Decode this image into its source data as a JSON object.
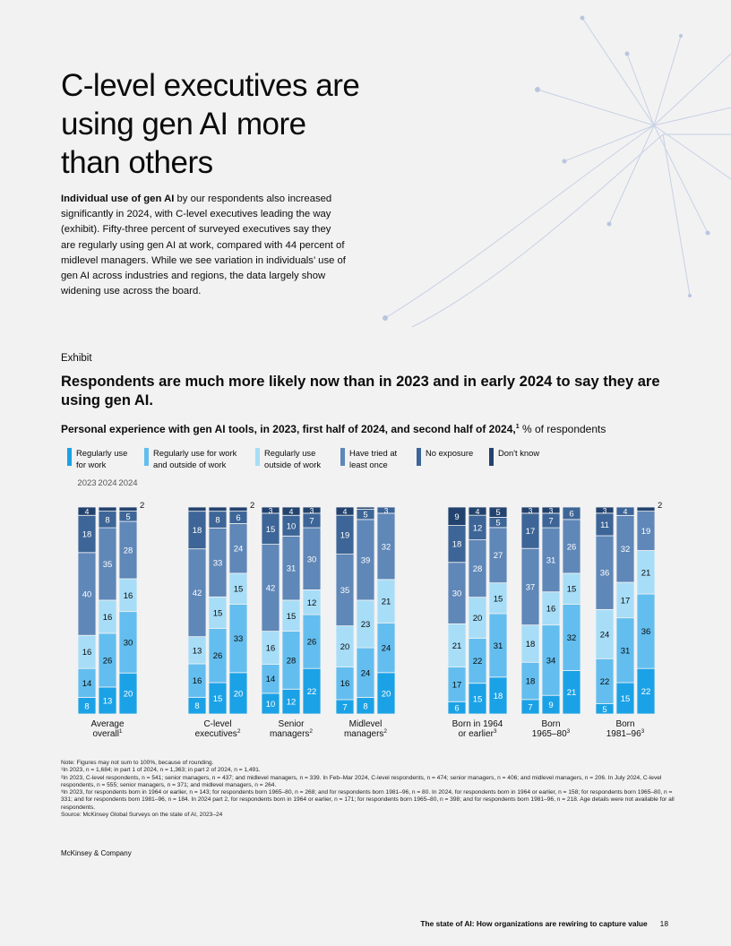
{
  "page": {
    "title": "C-level executives are using gen AI more than others",
    "intro_bold": "Individual use of gen AI",
    "intro_rest": " by our respondents also increased significantly in 2024, with C-level executives leading the way (exhibit). Fifty-three percent of surveyed executives say they are regularly using gen AI at work, compared with 44 percent of midlevel managers. While we see variation in individuals’ use of gen AI across industries and regions, the data largely show widening use across the board.",
    "exhibit_label": "Exhibit",
    "chart_title": "Respondents are much more likely now than in 2023 and in early 2024 to say they are using gen AI.",
    "chart_subtitle_bold": "Personal experience with gen AI tools, in 2023, first half of 2024, and second half of 2024,",
    "chart_subtitle_sup": "1",
    "chart_subtitle_rest": " % of respondents",
    "notes": [
      "Note: Figures may not sum to 100%, because of rounding.",
      "¹In 2023, n = 1,684; in part 1 of 2024, n = 1,363; in part 2 of 2024, n = 1,491.",
      "²In 2023, C-level respondents, n = 541; senior managers, n = 437; and midlevel managers, n = 339. In Feb–Mar 2024, C-level respondents, n = 474; senior managers, n = 406; and midlevel managers, n = 206. In July 2024, C-level respondents, n = 555; senior managers, n = 371; and midlevel managers, n = 264.",
      "³In 2023, for respondents born in 1964 or earlier, n = 143; for respondents born 1965–80, n = 268; and for respondents born 1981–96, n = 80. In 2024, for respondents born in 1964 or earlier, n = 158; for respondents born 1965–80, n = 331; and for respondents born 1981–96, n = 184. In 2024 part 2, for respondents born in 1964 or earlier, n = 171; for respondents born 1965–80, n = 398; and for respondents born 1981–96, n = 218. Age details were not available for all respondents.",
      "Source: McKinsey Global Surveys on the state of AI, 2023–24"
    ],
    "brand": "McKinsey & Company",
    "footer_text": "The state of AI: How organizations are rewiring to capture value",
    "page_number": "18"
  },
  "chart_data": {
    "type": "bar",
    "stacked": true,
    "years": [
      "2023",
      "2024",
      "2024"
    ],
    "categories": [
      {
        "label": [
          "Average",
          "overall"
        ],
        "sup": "1"
      },
      {
        "label": [
          "C-level",
          "executives"
        ],
        "sup": "2"
      },
      {
        "label": [
          "Senior",
          "managers"
        ],
        "sup": "2"
      },
      {
        "label": [
          "Midlevel",
          "managers"
        ],
        "sup": "2"
      },
      {
        "label": [
          "Born in 1964",
          "or earlier"
        ],
        "sup": "3"
      },
      {
        "label": [
          "Born",
          "1965–80"
        ],
        "sup": "3"
      },
      {
        "label": [
          "Born",
          "1981–96"
        ],
        "sup": "3"
      }
    ],
    "series": [
      {
        "name": "Regularly use for work",
        "color": "#1ba2e6",
        "text_color": "#ffffff"
      },
      {
        "name": "Regularly use for work and outside of work",
        "color": "#63beef",
        "text_color": "#0b0b0b"
      },
      {
        "name": "Regularly use outside of work",
        "color": "#a7ddf7",
        "text_color": "#0b0b0b"
      },
      {
        "name": "Have tried at least once",
        "color": "#5f87b8",
        "text_color": "#ffffff"
      },
      {
        "name": "No exposure",
        "color": "#3d6597",
        "text_color": "#ffffff"
      },
      {
        "name": "Don't know",
        "color": "#23436e",
        "text_color": "#ffffff"
      }
    ],
    "values": [
      [
        [
          8,
          14,
          16,
          40,
          18,
          4
        ],
        [
          13,
          26,
          16,
          35,
          8,
          2
        ],
        [
          20,
          30,
          16,
          28,
          5,
          2
        ]
      ],
      [
        [
          8,
          16,
          13,
          42,
          18,
          2
        ],
        [
          15,
          26,
          15,
          33,
          8,
          2
        ],
        [
          20,
          33,
          15,
          24,
          6,
          2
        ]
      ],
      [
        [
          10,
          14,
          16,
          42,
          15,
          3
        ],
        [
          12,
          28,
          15,
          31,
          10,
          4
        ],
        [
          22,
          26,
          12,
          30,
          7,
          3
        ]
      ],
      [
        [
          7,
          16,
          20,
          35,
          19,
          4
        ],
        [
          8,
          24,
          23,
          39,
          5,
          1
        ],
        [
          20,
          24,
          21,
          32,
          3,
          0
        ]
      ],
      [
        [
          6,
          17,
          21,
          30,
          18,
          9
        ],
        [
          15,
          22,
          20,
          28,
          12,
          4
        ],
        [
          18,
          31,
          15,
          27,
          5,
          5
        ]
      ],
      [
        [
          7,
          18,
          18,
          37,
          17,
          3
        ],
        [
          9,
          34,
          16,
          31,
          7,
          3
        ],
        [
          21,
          32,
          15,
          26,
          6,
          0
        ]
      ],
      [
        [
          5,
          22,
          24,
          36,
          11,
          3
        ],
        [
          15,
          31,
          17,
          32,
          4,
          0
        ],
        [
          22,
          36,
          21,
          19,
          0,
          2
        ]
      ]
    ],
    "outside_labels": [
      {
        "category": 0,
        "bar": 2,
        "text": "2"
      },
      {
        "category": 1,
        "bar": 2,
        "text": "2"
      },
      {
        "category": 6,
        "bar": 2,
        "text": "2"
      }
    ],
    "ylim": [
      0,
      100
    ]
  }
}
